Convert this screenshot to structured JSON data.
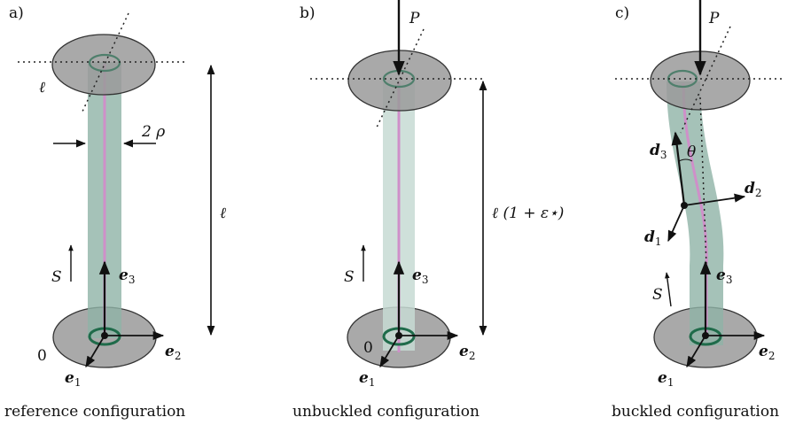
{
  "panels": [
    {
      "id": "a",
      "panel_label": "a)",
      "caption": "reference configuration",
      "length_label": "ℓ",
      "ell_label": "ℓ",
      "diameter_label": "2 ρ",
      "s_label": "S",
      "origin_label": "0",
      "e1": "e",
      "e1_sub": "1",
      "e2": "e",
      "e2_sub": "2",
      "e3": "e",
      "e3_sub": "3"
    },
    {
      "id": "b",
      "panel_label": "b)",
      "caption": "unbuckled configuration",
      "force_label": "P",
      "length_label": "ℓ (1 + ε⋆)",
      "s_label": "S",
      "origin_label": "0",
      "e1": "e",
      "e1_sub": "1",
      "e2": "e",
      "e2_sub": "2",
      "e3": "e",
      "e3_sub": "3"
    },
    {
      "id": "c",
      "panel_label": "c)",
      "caption": "buckled configuration",
      "force_label": "P",
      "theta_label": "θ",
      "s_label": "S",
      "d1": "d",
      "d1_sub": "1",
      "d2": "d",
      "d2_sub": "2",
      "d3": "d",
      "d3_sub": "3",
      "e1": "e",
      "e1_sub": "1",
      "e2": "e",
      "e2_sub": "2",
      "e3": "e",
      "e3_sub": "3"
    }
  ],
  "colors": {
    "disk_fill": "#9a9a9a",
    "rod_fill_reference": "#8fb3a6",
    "rod_fill_unbuckled": "#c7dbd3",
    "centerline": "#cf8fc9",
    "ring": "#1f6b4a",
    "ink": "#111111"
  }
}
